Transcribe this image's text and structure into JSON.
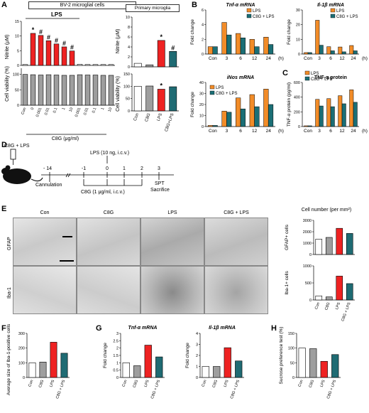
{
  "colors": {
    "con": "#ffffff",
    "c8g": "#9e9e9e",
    "lps": "#ee2222",
    "c8glps": "#1f6b73",
    "orange": "#f28c28",
    "teal": "#1b6f76",
    "black": "#000000"
  },
  "panels": {
    "A": "A",
    "B": "B",
    "C": "C",
    "D": "D",
    "E": "E",
    "F": "F",
    "G": "G",
    "H": "H"
  },
  "panelA": {
    "bv2_title": "BV-2 microglial cells",
    "lps_label": "LPS",
    "primary_title": "Primary microglia",
    "ylabel_nitrite": "Nitrite (μM)",
    "ylabel_viability": "Cell viability (%)",
    "xlabel_c8g": "C8G (μg/ml)",
    "bv2_xticks": [
      "Con",
      "0",
      "0.001",
      "0.01",
      "0.1",
      "1",
      "10",
      "0.001",
      "0.01",
      "0.1",
      "1",
      "10"
    ],
    "primary_xticks": [
      "Con",
      "C8G",
      "LPS",
      "C8G+LPS"
    ]
  },
  "panelB": {
    "tnf_title": "Tnf-α mRNA",
    "il1b_title": "Il-1β mRNA",
    "inos_title": "iNos mRNA",
    "ylabel": "Fold change",
    "legend": [
      "LPS",
      "C8G + LPS"
    ],
    "xticks": [
      "Con",
      "3",
      "6",
      "12",
      "24"
    ],
    "xunit": "(h)"
  },
  "panelC": {
    "title": "TNF-α protein",
    "ylabel": "TNF-α protein (pg/ml)",
    "legend": [
      "LPS",
      "C8G + LPS"
    ],
    "xticks": [
      "Con",
      "3",
      "6",
      "12",
      "24"
    ],
    "xunit": "(h)"
  },
  "panelD": {
    "treat_label": "C8G + LPS",
    "lps_label": "LPS (10 ng, i.c.v.)",
    "cannulation": "Cannulation",
    "c8g_label": "C8G (1 μg/ml, i.c.v.)",
    "spt": "SPT",
    "sacrifice": "Sacrifice",
    "days": [
      "- 14",
      "-1",
      "0",
      "1",
      "2",
      "3"
    ]
  },
  "panelE": {
    "cols": [
      "Con",
      "C8G",
      "LPS",
      "C8G + LPS"
    ],
    "rows": [
      "GFAP",
      "Iba-1"
    ],
    "cellnum_title": "Cell number (per mm²)",
    "gfap_ylabel": "GFAP+ cells",
    "iba_ylabel": "Iba-1+ cells",
    "xticks": [
      "Con",
      "C8G",
      "LPS",
      "C8G + LPS"
    ]
  },
  "panelF": {
    "ylabel": "Average size of Iba-1-positive cells (%)",
    "xticks": [
      "Con",
      "C8G",
      "LPS",
      "C8G + LPS"
    ]
  },
  "panelG": {
    "tnf_title": "Tnf-α mRNA",
    "il1b_title": "Il-1β mRNA",
    "ylabel": "Fold change",
    "xticks": [
      "Con",
      "C8G",
      "LPS",
      "C8G + LPS"
    ]
  },
  "panelH": {
    "ylabel": "Sucrose preference test (%)",
    "xticks": [
      "Con",
      "C8G",
      "LPS",
      "C8G + LPS"
    ]
  },
  "chart_data": [
    {
      "id": "A-bv2-nitrite",
      "type": "bar",
      "ylabel": "Nitrite (μM)",
      "ylim": [
        0,
        15
      ],
      "yticks": [
        0,
        5,
        10,
        15
      ],
      "categories": [
        "Con",
        "0",
        "0.001",
        "0.01",
        "0.1",
        "1",
        "10",
        "0.001",
        "0.01",
        "0.1",
        "1",
        "10"
      ],
      "values": [
        0.3,
        10.9,
        10.2,
        8.4,
        7.3,
        6.3,
        4.9,
        0.4,
        0.3,
        0.3,
        0.3,
        0.3
      ],
      "annotations": [
        "",
        "*",
        "#",
        "#",
        "#",
        "#",
        "#",
        "",
        "",
        "",
        "",
        ""
      ]
    },
    {
      "id": "A-bv2-viability",
      "type": "bar",
      "ylabel": "Cell viability (%)",
      "ylim": [
        0,
        120
      ],
      "yticks": [
        0,
        50,
        100
      ],
      "categories": [
        "Con",
        "0",
        "0.001",
        "0.01",
        "0.1",
        "1",
        "10",
        "0.001",
        "0.01",
        "0.1",
        "1",
        "10"
      ],
      "values": [
        100,
        99,
        98,
        99,
        98,
        97,
        97,
        99,
        98,
        98,
        97,
        97
      ]
    },
    {
      "id": "A-primary-nitrite",
      "type": "bar",
      "ylabel": "Nitrite (μM)",
      "ylim": [
        0,
        10
      ],
      "yticks": [
        0,
        2,
        4,
        6,
        8,
        10
      ],
      "categories": [
        "Con",
        "C8G",
        "LPS",
        "C8G+LPS"
      ],
      "values": [
        0.7,
        0.4,
        5.3,
        3.1
      ],
      "annotations": [
        "",
        "",
        "*",
        "#"
      ]
    },
    {
      "id": "A-primary-viability",
      "type": "bar",
      "ylabel": "Cell viability (%)",
      "ylim": [
        0,
        150
      ],
      "yticks": [
        0,
        50,
        100,
        150
      ],
      "categories": [
        "Con",
        "C8G",
        "LPS",
        "C8G+LPS"
      ],
      "values": [
        100,
        101,
        88,
        98
      ],
      "annotations": [
        "",
        "",
        "*",
        ""
      ]
    },
    {
      "id": "B-tnf",
      "type": "bar",
      "title": "Tnf-α mRNA",
      "ylabel": "Fold change",
      "ylim": [
        0,
        6
      ],
      "yticks": [
        0,
        2,
        4,
        6
      ],
      "categories": [
        "Con",
        "3",
        "6",
        "12",
        "24"
      ],
      "series": [
        {
          "name": "LPS",
          "values": [
            1.0,
            4.3,
            2.8,
            2.0,
            2.3
          ]
        },
        {
          "name": "C8G + LPS",
          "values": [
            1.0,
            2.6,
            2.2,
            1.0,
            1.3
          ]
        }
      ]
    },
    {
      "id": "B-il1b",
      "type": "bar",
      "title": "Il-1β mRNA",
      "ylabel": "Fold change",
      "ylim": [
        0,
        30
      ],
      "yticks": [
        0,
        10,
        20,
        30
      ],
      "categories": [
        "Con",
        "3",
        "6",
        "12",
        "24"
      ],
      "series": [
        {
          "name": "LPS",
          "values": [
            1.0,
            23.0,
            5.0,
            4.8,
            5.8
          ]
        },
        {
          "name": "C8G + LPS",
          "values": [
            1.0,
            6.0,
            2.2,
            1.5,
            2.2
          ]
        }
      ]
    },
    {
      "id": "B-inos",
      "type": "bar",
      "title": "iNos mRNA",
      "ylabel": "Fold change",
      "ylim": [
        0,
        40
      ],
      "yticks": [
        0,
        10,
        20,
        30,
        40
      ],
      "categories": [
        "Con",
        "3",
        "6",
        "12",
        "24"
      ],
      "series": [
        {
          "name": "LPS",
          "values": [
            1.0,
            14.0,
            26.0,
            29.0,
            34.0
          ]
        },
        {
          "name": "C8G + LPS",
          "values": [
            1.0,
            13.0,
            16.0,
            18.0,
            20.0
          ]
        }
      ]
    },
    {
      "id": "C-tnf-protein",
      "type": "bar",
      "title": "TNF-α protein",
      "ylabel": "TNF-α protein (pg/ml)",
      "ylim": [
        0,
        600
      ],
      "yticks": [
        0,
        200,
        400,
        600
      ],
      "categories": [
        "Con",
        "3",
        "6",
        "12",
        "24"
      ],
      "series": [
        {
          "name": "LPS",
          "values": [
            10,
            370,
            380,
            420,
            500
          ]
        },
        {
          "name": "C8G + LPS",
          "values": [
            10,
            280,
            270,
            310,
            330
          ]
        }
      ]
    },
    {
      "id": "E-gfap",
      "type": "bar",
      "ylabel": "GFAP+ cells",
      "ylim": [
        0,
        3000
      ],
      "yticks": [
        0,
        1000,
        2000,
        3000
      ],
      "categories": [
        "Con",
        "C8G",
        "LPS",
        "C8G + LPS"
      ],
      "values": [
        1350,
        1500,
        2300,
        1850
      ]
    },
    {
      "id": "E-iba",
      "type": "bar",
      "ylabel": "Iba-1+ cells",
      "ylim": [
        0,
        1000
      ],
      "yticks": [
        0,
        500,
        1000
      ],
      "categories": [
        "Con",
        "C8G",
        "LPS",
        "C8G + LPS"
      ],
      "values": [
        120,
        90,
        700,
        480
      ]
    },
    {
      "id": "F-size",
      "type": "bar",
      "ylabel": "Average size of Iba-1-positive cells (%)",
      "ylim": [
        0,
        300
      ],
      "yticks": [
        0,
        100,
        200,
        300
      ],
      "categories": [
        "Con",
        "C8G",
        "LPS",
        "C8G + LPS"
      ],
      "values": [
        100,
        105,
        240,
        165
      ]
    },
    {
      "id": "G-tnf",
      "type": "bar",
      "title": "Tnf-α mRNA",
      "ylabel": "Fold change",
      "ylim": [
        0,
        3.0
      ],
      "yticks": [
        0,
        0.5,
        1.0,
        1.5,
        2.0,
        2.5,
        3.0
      ],
      "categories": [
        "Con",
        "C8G",
        "LPS",
        "C8G + LPS"
      ],
      "values": [
        1.0,
        0.8,
        2.2,
        1.4
      ]
    },
    {
      "id": "G-il1b",
      "type": "bar",
      "title": "Il-1β mRNA",
      "ylabel": "Fold change",
      "ylim": [
        0,
        4
      ],
      "yticks": [
        0,
        1,
        2,
        3,
        4
      ],
      "categories": [
        "Con",
        "C8G",
        "LPS",
        "C8G + LPS"
      ],
      "values": [
        1.0,
        1.0,
        2.7,
        1.5
      ]
    },
    {
      "id": "H-spt",
      "type": "bar",
      "ylabel": "Sucrose preference test (%)",
      "ylim": [
        0,
        150
      ],
      "yticks": [
        0,
        50,
        100,
        150
      ],
      "categories": [
        "Con",
        "C8G",
        "LPS",
        "C8G + LPS"
      ],
      "values": [
        100,
        98,
        55,
        78
      ]
    }
  ]
}
